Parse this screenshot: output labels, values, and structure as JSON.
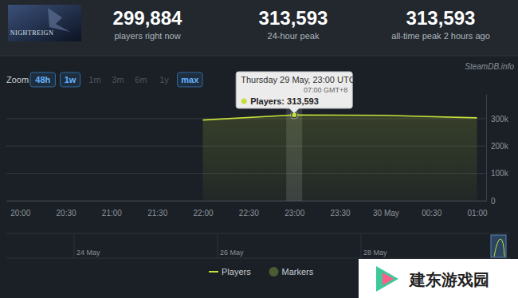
{
  "header": {
    "logo": "NIGHTREIGN",
    "stats": [
      {
        "value": "299,884",
        "label": "players right now"
      },
      {
        "value": "313,593",
        "label": "24-hour peak"
      },
      {
        "value": "313,593",
        "label": "all-time peak 2 hours ago"
      }
    ]
  },
  "source": "SteamDB.info",
  "zoom": {
    "label": "Zoom",
    "buttons": [
      {
        "text": "48h",
        "enabled": true
      },
      {
        "text": "1w",
        "enabled": true
      },
      {
        "text": "1m",
        "enabled": false
      },
      {
        "text": "3m",
        "enabled": false
      },
      {
        "text": "6m",
        "enabled": false
      },
      {
        "text": "1y",
        "enabled": false
      },
      {
        "text": "max",
        "enabled": true
      }
    ]
  },
  "chart_data": {
    "type": "area",
    "x": [
      22,
      23,
      24,
      25
    ],
    "xlim": [
      19.85,
      25.1
    ],
    "xticks": [
      {
        "value": 20,
        "label": "20:00"
      },
      {
        "value": 20.5,
        "label": "20:30"
      },
      {
        "value": 21,
        "label": "21:00"
      },
      {
        "value": 21.5,
        "label": "21:30"
      },
      {
        "value": 22,
        "label": "22:00"
      },
      {
        "value": 22.5,
        "label": "22:30"
      },
      {
        "value": 23,
        "label": "23:00"
      },
      {
        "value": 23.5,
        "label": "23:30"
      },
      {
        "value": 24,
        "label": "30 May"
      },
      {
        "value": 24.5,
        "label": "00:30"
      },
      {
        "value": 25,
        "label": "01:00"
      }
    ],
    "ylim": [
      0,
      390000
    ],
    "yticks": [
      0,
      {
        "value": 100000,
        "label": "100k"
      },
      {
        "value": 200000,
        "label": "200k"
      },
      {
        "value": 300000,
        "label": "300k"
      }
    ],
    "grid": true,
    "legend": "bottom",
    "series": [
      {
        "name": "Players",
        "color": "#c5e03a",
        "values": [
          295000,
          313593,
          312000,
          303000
        ]
      },
      {
        "name": "Markers",
        "color": "#4a5d32",
        "marker": "circle",
        "values": [
          null,
          null,
          null,
          null
        ]
      }
    ],
    "annotations": [
      {
        "x": 23,
        "text": [
          "Thursday 29 May, 23:00 UTC",
          "07:00 GMT+8"
        ],
        "label": "Players: 313,593"
      }
    ]
  },
  "navigator": {
    "labels": [
      "24 May",
      "26 May",
      "28 May"
    ]
  },
  "watermark": "建东游戏园"
}
